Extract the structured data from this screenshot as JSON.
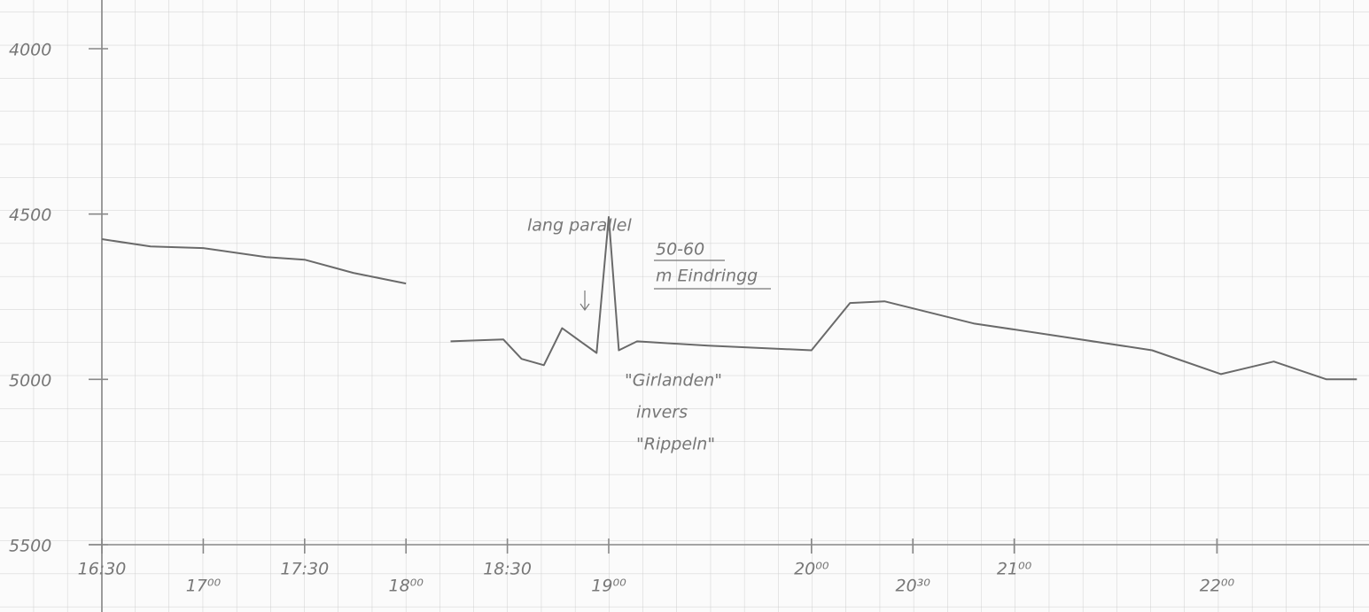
{
  "chart_data": {
    "type": "line",
    "x": [
      16.5,
      16.74,
      17.0,
      17.31,
      17.5,
      17.74,
      18.0,
      18.0,
      18.22,
      18.48,
      18.57,
      18.68,
      18.77,
      18.86,
      18.94,
      19.0,
      19.05,
      19.14,
      19.49,
      20.0,
      20.19,
      20.36,
      20.8,
      21.24,
      21.68,
      22.02,
      22.28,
      22.54,
      22.69
    ],
    "series": [
      {
        "color": "#6a6a6a",
        "values": [
          4576,
          4598,
          4603,
          4630,
          4638,
          4678,
          4710,
          null,
          4885,
          4879,
          4938,
          4957,
          4845,
          4885,
          4920,
          4509,
          4912,
          4885,
          4898,
          4912,
          4769,
          4764,
          4831,
          4871,
          4912,
          4984,
          4946,
          5000,
          5000
        ]
      }
    ],
    "xlim": [
      16.5,
      22.75
    ],
    "xticks": [
      {
        "value": 16.5,
        "label": "16:30"
      },
      {
        "value": 17.0,
        "label": "17⁰⁰"
      },
      {
        "value": 17.5,
        "label": "17:30"
      },
      {
        "value": 18.0,
        "label": "18⁰⁰"
      },
      {
        "value": 18.5,
        "label": "18:30"
      },
      {
        "value": 19.0,
        "label": "19⁰⁰"
      },
      {
        "value": 20.0,
        "label": "20⁰⁰"
      },
      {
        "value": 20.5,
        "label": "20³⁰"
      },
      {
        "value": 21.0,
        "label": "21⁰⁰"
      },
      {
        "value": 22.0,
        "label": "22⁰⁰"
      }
    ],
    "ylim": [
      4000,
      5500
    ],
    "y_inverted": true,
    "yticks": [
      4000,
      4500,
      5000,
      5500
    ],
    "grid": true,
    "annotations": [
      "lang parallel",
      "50-60",
      "m Eindringg",
      "\"Girlanden\"",
      "invers",
      "\"Rippeln\""
    ]
  }
}
